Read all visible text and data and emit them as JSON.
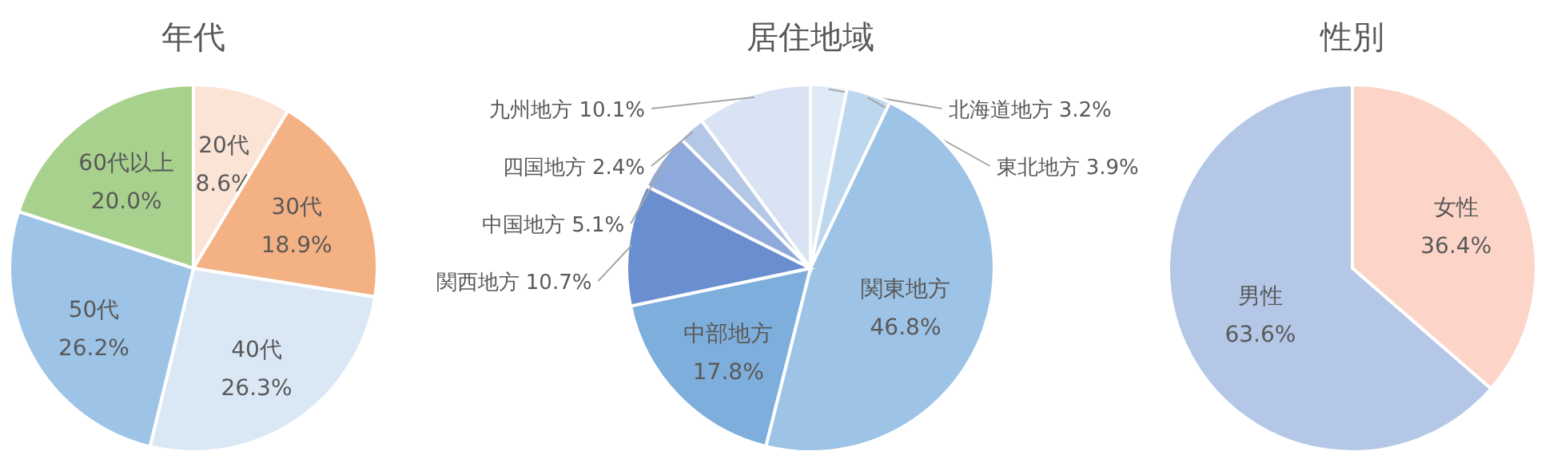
{
  "chart_data": [
    {
      "type": "pie",
      "title": "年代",
      "categories": [
        "20代",
        "30代",
        "40代",
        "50代",
        "60代以上"
      ],
      "values": [
        8.6,
        18.9,
        26.3,
        26.2,
        20.0
      ],
      "value_labels": [
        "8.6%",
        "18.9%",
        "26.3%",
        "26.2%",
        "20.0%"
      ],
      "colors": [
        "#fbe3d6",
        "#f4b183",
        "#dae8f6",
        "#9dc3e6",
        "#a9d18e"
      ]
    },
    {
      "type": "pie",
      "title": "居住地域",
      "categories": [
        "北海道地方",
        "東北地方",
        "関東地方",
        "中部地方",
        "関西地方",
        "中国地方",
        "四国地方",
        "九州地方"
      ],
      "values": [
        3.2,
        3.9,
        46.8,
        17.8,
        10.7,
        5.1,
        2.4,
        10.1
      ],
      "value_labels": [
        "3.2%",
        "3.9%",
        "46.8%",
        "17.8%",
        "10.7%",
        "5.1%",
        "2.4%",
        "10.1%"
      ],
      "colors": [
        "#deebf7",
        "#bdd7ee",
        "#9dc3e6",
        "#7eaedc",
        "#6a8fd0",
        "#8ea9db",
        "#b4c7e7",
        "#dae3f3"
      ]
    },
    {
      "type": "pie",
      "title": "性別",
      "categories": [
        "女性",
        "男性"
      ],
      "values": [
        36.4,
        63.6
      ],
      "value_labels": [
        "36.4%",
        "63.6%"
      ],
      "colors": [
        "#fdd5c8",
        "#b4c7e7"
      ]
    }
  ]
}
